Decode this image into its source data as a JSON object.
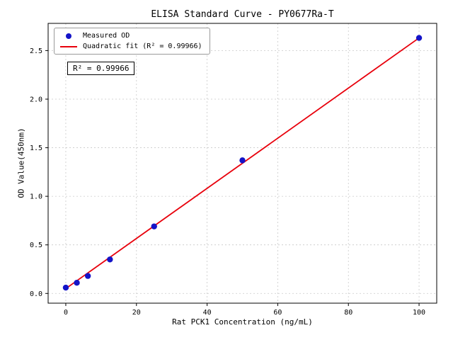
{
  "figure": {
    "background": "#ffffff"
  },
  "chart_data": {
    "type": "scatter",
    "title": "ELISA Standard Curve - PY0677Ra-T",
    "xlabel": "Rat PCK1 Concentration (ng/mL)",
    "ylabel": "OD Value(450nm)",
    "xlim": [
      -5,
      105
    ],
    "ylim": [
      -0.1,
      2.78
    ],
    "grid": true,
    "grid_color": "#c9c9c9",
    "axis_color": "#000000",
    "xticks": {
      "values": [
        0,
        20,
        40,
        60,
        80,
        100
      ],
      "labels": [
        "0",
        "20",
        "40",
        "60",
        "80",
        "100"
      ]
    },
    "yticks": {
      "values": [
        0,
        0.5,
        1.0,
        1.5,
        2.0,
        2.5
      ],
      "labels": [
        "0.0",
        "0.5",
        "1.0",
        "1.5",
        "2.0",
        "2.5"
      ]
    },
    "series": [
      {
        "name": "Measured OD",
        "type": "scatter",
        "color": "#1414c8",
        "x": [
          0,
          3.125,
          6.25,
          12.5,
          25,
          50,
          100
        ],
        "y": [
          0.06,
          0.11,
          0.18,
          0.35,
          0.69,
          1.37,
          2.63
        ]
      },
      {
        "name": "Quadratic fit (R² = 0.99966)",
        "type": "line",
        "color": "#e8000b",
        "x": [
          0,
          100
        ],
        "y": [
          0.05,
          2.63
        ]
      }
    ],
    "legend": {
      "position": "upper-left",
      "entries": [
        "Measured OD",
        "Quadratic fit (R² = 0.99966)"
      ]
    },
    "annotation": "R² = 0.99966"
  }
}
